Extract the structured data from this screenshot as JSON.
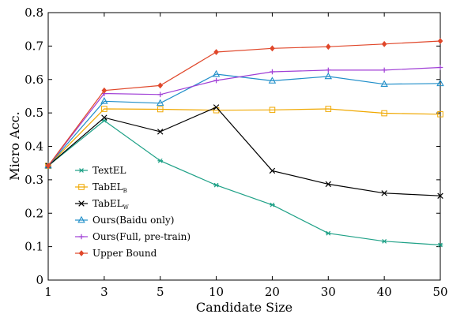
{
  "chart_data": {
    "type": "line",
    "categories": [
      "1",
      "3",
      "5",
      "10",
      "20",
      "30",
      "40",
      "50"
    ],
    "xlabel": "Candidate Size",
    "ylabel": "Micro Acc.",
    "ylim": [
      0,
      0.8
    ],
    "yticks": [
      "0",
      "0.1",
      "0.2",
      "0.3",
      "0.4",
      "0.5",
      "0.6",
      "0.7",
      "0.8"
    ],
    "grid": false,
    "legend_position": "lower-left",
    "series": [
      {
        "name": "TextEL",
        "name_sub": "",
        "color": "#1fa187",
        "marker": "asterisk",
        "values": [
          0.342,
          0.477,
          0.357,
          0.284,
          0.225,
          0.14,
          0.116,
          0.105
        ]
      },
      {
        "name": "TabEL",
        "name_sub": "B",
        "color": "#f0a800",
        "marker": "square",
        "values": [
          0.342,
          0.512,
          0.511,
          0.508,
          0.509,
          0.512,
          0.499,
          0.496
        ]
      },
      {
        "name": "TabEL",
        "name_sub": "W",
        "color": "#000000",
        "marker": "x",
        "values": [
          0.342,
          0.486,
          0.444,
          0.517,
          0.327,
          0.287,
          0.26,
          0.252
        ]
      },
      {
        "name": "Ours(Baidu only)",
        "name_sub": "",
        "color": "#1f8ec9",
        "marker": "triangle",
        "values": [
          0.342,
          0.535,
          0.529,
          0.616,
          0.596,
          0.609,
          0.586,
          0.588
        ]
      },
      {
        "name": "Ours(Full, pre-train)",
        "name_sub": "",
        "color": "#a03fd6",
        "marker": "plus",
        "values": [
          0.342,
          0.558,
          0.555,
          0.597,
          0.623,
          0.628,
          0.628,
          0.636
        ]
      },
      {
        "name": "Upper Bound",
        "name_sub": "",
        "color": "#e0472a",
        "marker": "diamond",
        "values": [
          0.342,
          0.567,
          0.582,
          0.682,
          0.693,
          0.698,
          0.706,
          0.715
        ]
      }
    ]
  }
}
